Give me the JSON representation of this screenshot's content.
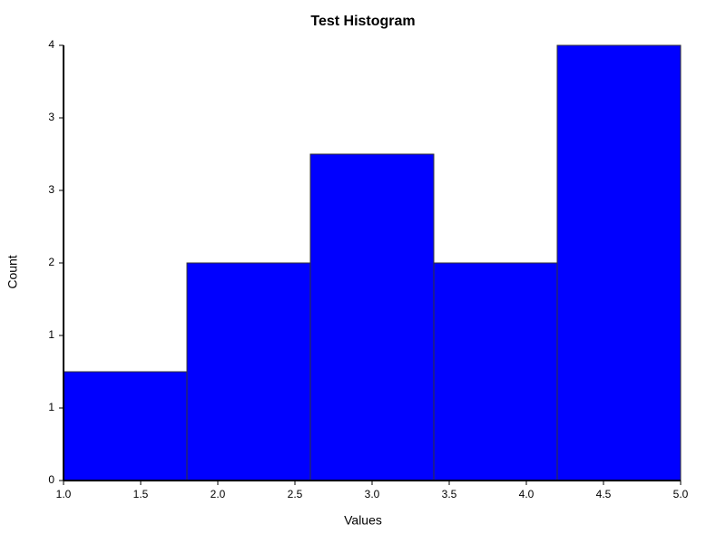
{
  "chart_data": {
    "type": "histogram",
    "title": "Test Histogram",
    "x_label": "Values",
    "y_label": "Count",
    "bins": [
      1.0,
      1.8,
      2.6,
      3.4,
      4.2,
      5.0
    ],
    "values": [
      1,
      2,
      3,
      2,
      4
    ],
    "color": "#0000ff",
    "edge_color": "#333333",
    "xlim": [
      1,
      5
    ],
    "xticks": [
      {
        "value": 1,
        "label": "1.0"
      },
      1.5,
      {
        "value": 2,
        "label": "2.0"
      },
      2.5,
      {
        "value": 3,
        "label": "3.0"
      },
      3.5,
      {
        "value": 4,
        "label": "4.0"
      },
      4.5,
      {
        "value": 5,
        "label": "5.0"
      }
    ],
    "ylim": [
      0,
      4
    ],
    "yticks": [
      0,
      {
        "value": 0.6667,
        "label": "1"
      },
      {
        "value": 1.3333,
        "label": "1"
      },
      2,
      {
        "value": 2.6667,
        "label": "3"
      },
      {
        "value": 3.3333,
        "label": "3"
      },
      4
    ],
    "grid": false
  }
}
